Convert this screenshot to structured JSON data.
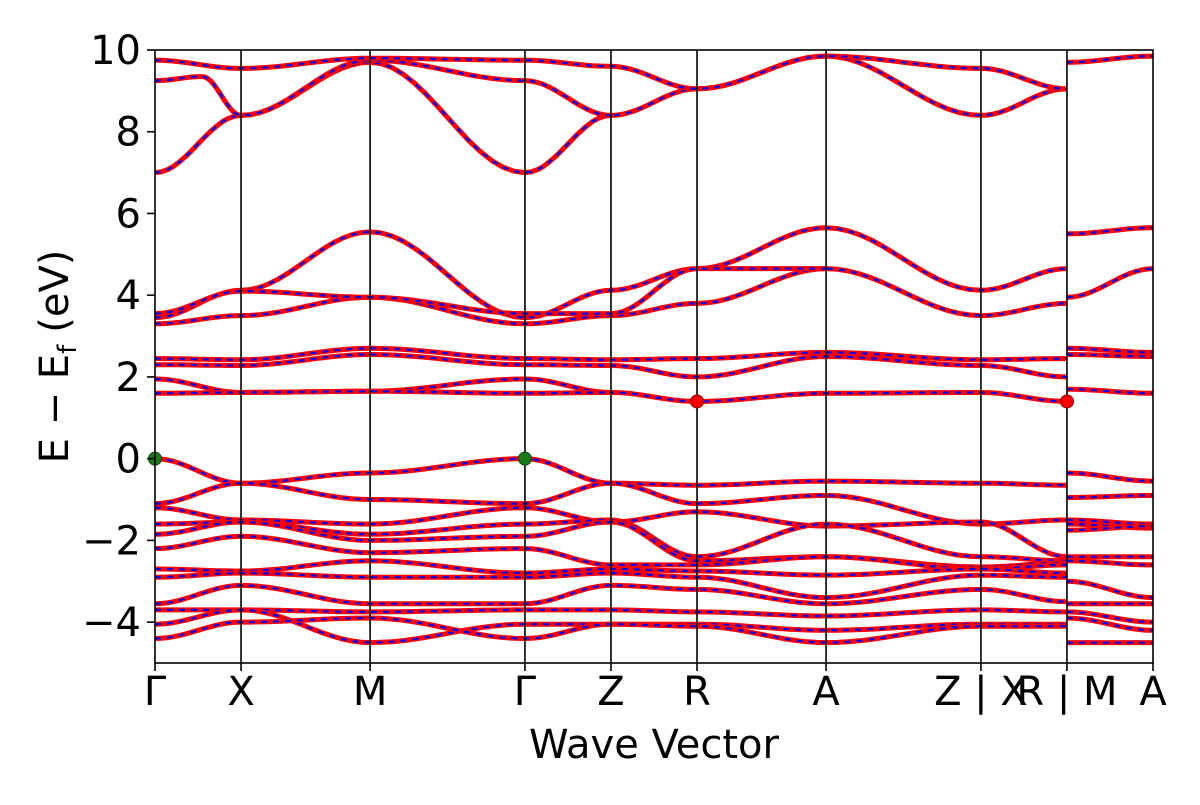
{
  "chart_data": {
    "type": "line",
    "title": "",
    "xlabel": "Wave Vector",
    "ylabel_main": "E − E",
    "ylabel_sub": "f",
    "ylabel_unit": "(eV)",
    "ylim": [
      -5,
      10
    ],
    "yticks": [
      10,
      8,
      6,
      4,
      2,
      0,
      -2,
      -4
    ],
    "ytick_labels": [
      "10",
      "8",
      "6",
      "4",
      "2",
      "0",
      "−2",
      "−4"
    ],
    "xlim": [
      0,
      11.6
    ],
    "kpoints": [
      {
        "label": "Γ",
        "x": 0
      },
      {
        "label": "X",
        "x": 1.0
      },
      {
        "label": "M",
        "x": 2.5
      },
      {
        "label": "Γ",
        "x": 4.3
      },
      {
        "label": "Z",
        "x": 5.3
      },
      {
        "label": "R",
        "x": 6.3
      },
      {
        "label": "A",
        "x": 7.8
      },
      {
        "label": "Z | X",
        "x": 9.6
      },
      {
        "label": "R | M",
        "x": 10.6
      },
      {
        "label": "A",
        "x": 11.6
      }
    ],
    "gap_break_x": 10.6,
    "bands": [
      {
        "segs": [
          [
            0,
            7.0
          ],
          [
            1,
            8.4
          ],
          [
            2.5,
            9.7
          ],
          [
            4.3,
            7.0
          ],
          [
            5.3,
            8.4
          ],
          [
            6.3,
            9.05
          ],
          [
            7.8,
            9.85
          ],
          [
            9.6,
            8.4
          ],
          [
            10.6,
            9.05
          ]
        ],
        "after_break": [
          [
            10.6,
            9.7
          ],
          [
            11.6,
            9.85
          ]
        ]
      },
      {
        "segs": [
          [
            0,
            9.25
          ],
          [
            0.55,
            9.35
          ],
          [
            1,
            8.4
          ],
          [
            2.5,
            9.75
          ],
          [
            4.3,
            9.25
          ],
          [
            5.3,
            8.4
          ]
        ]
      },
      {
        "segs": [
          [
            0,
            9.75
          ],
          [
            1,
            9.55
          ],
          [
            2.5,
            9.8
          ],
          [
            4.3,
            9.75
          ],
          [
            5.3,
            9.6
          ],
          [
            6.3,
            9.05
          ],
          [
            7.8,
            9.85
          ],
          [
            9.6,
            9.55
          ],
          [
            10.6,
            9.05
          ]
        ]
      },
      {
        "segs": [
          [
            0,
            3.45
          ],
          [
            1,
            4.12
          ],
          [
            2.5,
            5.55
          ],
          [
            4.3,
            3.45
          ],
          [
            5.3,
            4.12
          ],
          [
            6.3,
            4.65
          ],
          [
            7.8,
            5.65
          ],
          [
            9.6,
            4.12
          ],
          [
            10.6,
            4.65
          ]
        ],
        "after_break": [
          [
            10.6,
            5.5
          ],
          [
            11.6,
            5.65
          ]
        ]
      },
      {
        "segs": [
          [
            0,
            3.3
          ],
          [
            1,
            3.5
          ],
          [
            2.5,
            3.95
          ],
          [
            4.3,
            3.3
          ],
          [
            5.3,
            3.5
          ],
          [
            6.3,
            3.8
          ],
          [
            7.8,
            4.65
          ],
          [
            9.6,
            3.5
          ],
          [
            10.6,
            3.8
          ]
        ],
        "after_break": [
          [
            10.6,
            3.95
          ],
          [
            11.6,
            4.65
          ]
        ]
      },
      {
        "segs": [
          [
            0,
            3.55
          ],
          [
            1,
            4.1
          ],
          [
            2.5,
            3.95
          ],
          [
            4.3,
            3.55
          ],
          [
            5.3,
            3.55
          ],
          [
            6.3,
            4.65
          ],
          [
            7.8,
            4.65
          ]
        ]
      },
      {
        "segs": [
          [
            0,
            2.45
          ],
          [
            1,
            2.42
          ],
          [
            2.5,
            2.7
          ],
          [
            4.3,
            2.45
          ],
          [
            5.3,
            2.42
          ],
          [
            6.3,
            2.45
          ],
          [
            7.8,
            2.6
          ],
          [
            9.6,
            2.42
          ],
          [
            10.6,
            2.45
          ]
        ],
        "after_break": [
          [
            10.6,
            2.7
          ],
          [
            11.6,
            2.6
          ]
        ]
      },
      {
        "segs": [
          [
            0,
            2.3
          ],
          [
            1,
            2.28
          ],
          [
            2.5,
            2.55
          ],
          [
            4.3,
            2.3
          ],
          [
            5.3,
            2.28
          ],
          [
            6.3,
            2.0
          ],
          [
            7.8,
            2.5
          ],
          [
            9.6,
            2.28
          ],
          [
            10.6,
            2.0
          ]
        ],
        "after_break": [
          [
            10.6,
            2.55
          ],
          [
            11.6,
            2.5
          ]
        ]
      },
      {
        "segs": [
          [
            0,
            1.95
          ],
          [
            1,
            1.62
          ],
          [
            2.5,
            1.65
          ],
          [
            4.3,
            1.95
          ],
          [
            5.3,
            1.62
          ],
          [
            6.3,
            1.4
          ],
          [
            7.8,
            1.6
          ],
          [
            9.6,
            1.62
          ],
          [
            10.6,
            1.4
          ]
        ],
        "after_break": [
          [
            10.6,
            1.7
          ],
          [
            11.6,
            1.6
          ]
        ]
      },
      {
        "segs": [
          [
            0,
            1.6
          ],
          [
            1,
            1.62
          ],
          [
            2.5,
            1.65
          ],
          [
            4.3,
            1.6
          ],
          [
            5.3,
            1.62
          ]
        ]
      },
      {
        "segs": [
          [
            0,
            0.0
          ],
          [
            1,
            -0.6
          ],
          [
            2.5,
            -0.35
          ],
          [
            4.3,
            0.0
          ],
          [
            5.3,
            -0.6
          ],
          [
            6.3,
            -0.65
          ],
          [
            7.8,
            -0.55
          ],
          [
            9.6,
            -0.6
          ],
          [
            10.6,
            -0.65
          ]
        ],
        "after_break": [
          [
            10.6,
            -0.35
          ],
          [
            11.6,
            -0.55
          ]
        ]
      },
      {
        "segs": [
          [
            0,
            -1.1
          ],
          [
            1,
            -0.6
          ],
          [
            2.5,
            -1.0
          ],
          [
            4.3,
            -1.1
          ],
          [
            5.3,
            -0.6
          ],
          [
            6.3,
            -1.1
          ],
          [
            7.8,
            -0.9
          ],
          [
            9.6,
            -1.6
          ],
          [
            10.6,
            -1.5
          ]
        ],
        "after_break": [
          [
            10.6,
            -0.95
          ],
          [
            11.6,
            -0.9
          ]
        ]
      },
      {
        "segs": [
          [
            0,
            -1.2
          ],
          [
            1,
            -1.5
          ],
          [
            2.5,
            -1.6
          ],
          [
            4.3,
            -1.2
          ],
          [
            5.3,
            -1.55
          ],
          [
            6.3,
            -1.3
          ],
          [
            7.8,
            -1.65
          ],
          [
            9.6,
            -1.55
          ],
          [
            10.6,
            -2.4
          ]
        ],
        "after_break": [
          [
            10.6,
            -1.5
          ],
          [
            11.6,
            -1.6
          ]
        ]
      },
      {
        "segs": [
          [
            0,
            -1.6
          ],
          [
            1,
            -1.55
          ],
          [
            2.5,
            -1.85
          ],
          [
            4.3,
            -1.6
          ],
          [
            5.3,
            -1.5
          ],
          [
            6.3,
            -2.4
          ],
          [
            7.8,
            -1.6
          ],
          [
            9.6,
            -2.4
          ],
          [
            10.6,
            -2.5
          ]
        ],
        "after_break": [
          [
            10.6,
            -1.6
          ],
          [
            11.6,
            -1.7
          ]
        ]
      },
      {
        "segs": [
          [
            0,
            -1.85
          ],
          [
            1,
            -1.55
          ],
          [
            2.5,
            -2.0
          ],
          [
            4.3,
            -1.9
          ],
          [
            5.3,
            -1.55
          ],
          [
            6.3,
            -2.5
          ],
          [
            7.8,
            -2.4
          ],
          [
            9.6,
            -2.65
          ],
          [
            10.6,
            -2.55
          ]
        ],
        "after_break": [
          [
            10.6,
            -1.75
          ],
          [
            11.6,
            -1.65
          ]
        ]
      },
      {
        "segs": [
          [
            0,
            -2.2
          ],
          [
            1,
            -1.9
          ],
          [
            2.5,
            -2.3
          ],
          [
            4.3,
            -2.2
          ],
          [
            5.3,
            -2.6
          ],
          [
            6.3,
            -2.6
          ],
          [
            7.8,
            -2.4
          ],
          [
            9.6,
            -2.7
          ],
          [
            10.6,
            -2.6
          ]
        ],
        "after_break": [
          [
            10.6,
            -2.4
          ],
          [
            11.6,
            -2.4
          ]
        ]
      },
      {
        "segs": [
          [
            0,
            -2.7
          ],
          [
            1,
            -2.75
          ],
          [
            2.5,
            -2.5
          ],
          [
            4.3,
            -2.8
          ],
          [
            5.3,
            -2.7
          ],
          [
            6.3,
            -2.75
          ],
          [
            7.8,
            -2.85
          ],
          [
            9.6,
            -2.7
          ],
          [
            10.6,
            -2.8
          ]
        ],
        "after_break": [
          [
            10.6,
            -2.5
          ],
          [
            11.6,
            -2.6
          ]
        ]
      },
      {
        "segs": [
          [
            0,
            -2.9
          ],
          [
            1,
            -2.8
          ],
          [
            2.5,
            -2.9
          ],
          [
            4.3,
            -2.9
          ],
          [
            5.3,
            -2.8
          ],
          [
            6.3,
            -2.9
          ],
          [
            7.8,
            -3.4
          ],
          [
            9.6,
            -2.85
          ],
          [
            10.6,
            -2.9
          ]
        ],
        "after_break": [
          [
            10.6,
            -3.0
          ],
          [
            11.6,
            -3.4
          ]
        ]
      },
      {
        "segs": [
          [
            0,
            -3.55
          ],
          [
            1,
            -3.1
          ],
          [
            2.5,
            -3.55
          ],
          [
            4.3,
            -3.55
          ],
          [
            5.3,
            -3.1
          ],
          [
            6.3,
            -3.2
          ],
          [
            7.8,
            -3.55
          ],
          [
            9.6,
            -3.2
          ],
          [
            10.6,
            -3.5
          ]
        ],
        "after_break": [
          [
            10.6,
            -3.55
          ],
          [
            11.6,
            -3.55
          ]
        ]
      },
      {
        "segs": [
          [
            0,
            -3.7
          ],
          [
            1,
            -3.7
          ],
          [
            2.5,
            -3.75
          ],
          [
            4.3,
            -3.7
          ],
          [
            5.3,
            -3.7
          ],
          [
            6.3,
            -3.75
          ],
          [
            7.8,
            -3.85
          ],
          [
            9.6,
            -3.7
          ],
          [
            10.6,
            -3.75
          ]
        ],
        "after_break": [
          [
            10.6,
            -3.75
          ],
          [
            11.6,
            -4.0
          ]
        ]
      },
      {
        "segs": [
          [
            0,
            -4.05
          ],
          [
            1,
            -3.7
          ],
          [
            2.5,
            -4.5
          ],
          [
            4.3,
            -4.05
          ],
          [
            5.3,
            -4.05
          ],
          [
            6.3,
            -4.05
          ],
          [
            7.8,
            -4.2
          ],
          [
            9.6,
            -4.05
          ],
          [
            10.6,
            -4.05
          ]
        ],
        "after_break": [
          [
            10.6,
            -3.9
          ],
          [
            11.6,
            -4.2
          ]
        ]
      },
      {
        "segs": [
          [
            0,
            -4.4
          ],
          [
            1,
            -4.0
          ],
          [
            2.5,
            -3.9
          ],
          [
            4.3,
            -4.4
          ],
          [
            5.3,
            -4.05
          ],
          [
            6.3,
            -4.1
          ],
          [
            7.8,
            -4.5
          ],
          [
            9.6,
            -4.1
          ],
          [
            10.6,
            -4.1
          ]
        ],
        "after_break": [
          [
            10.6,
            -4.5
          ],
          [
            11.6,
            -4.5
          ]
        ]
      }
    ],
    "vbm_points": [
      [
        0,
        0.0
      ],
      [
        4.3,
        0.0
      ]
    ],
    "cbm_points": [
      [
        6.3,
        1.4
      ],
      [
        10.6,
        1.4
      ]
    ],
    "colors": {
      "band_red": "#ff0000",
      "band_blue": "#0000ff",
      "vbm": "#1a7a1a",
      "cbm": "#ff0000",
      "axis": "#000000"
    }
  }
}
